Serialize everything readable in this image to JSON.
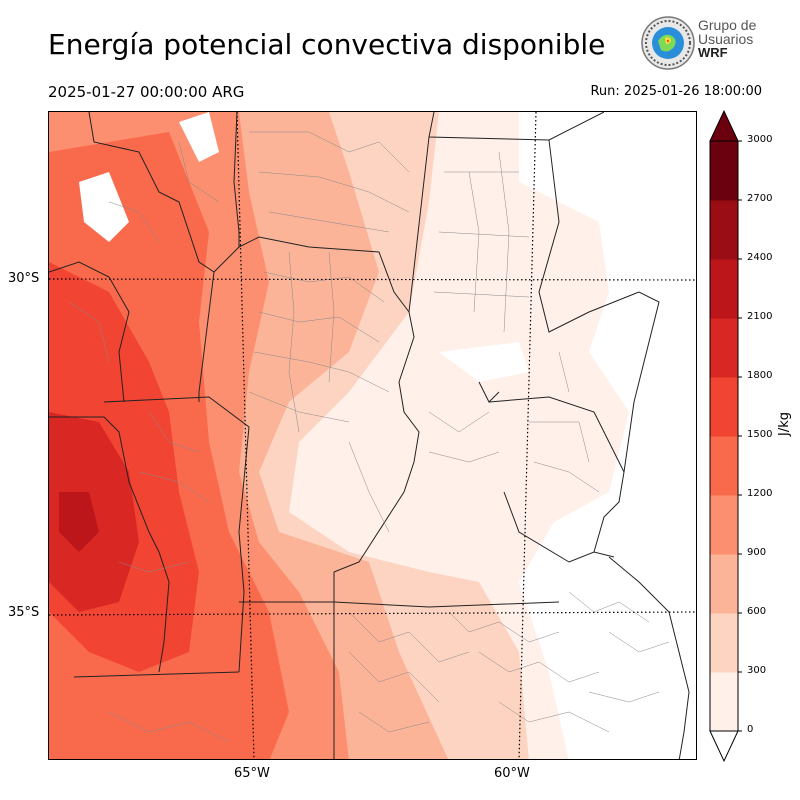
{
  "title": "Energía potencial convectiva disponible",
  "valid_time": "2025-01-27 00:00:00 ARG",
  "run_time": "Run: 2025-01-26 18:00:00",
  "logo": {
    "line1": "Grupo de",
    "line2": "Usuarios",
    "line3": "WRF"
  },
  "map": {
    "latitude_labels": [
      "30°S",
      "35°S"
    ],
    "longitude_labels": [
      "65°W",
      "60°W"
    ],
    "variable": "CAPE",
    "gridlines": "dotted"
  },
  "colorbar": {
    "unit": "J/kg",
    "ticks": [
      "0",
      "300",
      "600",
      "900",
      "1200",
      "1500",
      "1800",
      "2100",
      "2400",
      "2700",
      "3000"
    ],
    "levels": [
      0,
      300,
      600,
      900,
      1200,
      1500,
      1800,
      2100,
      2400,
      2700,
      3000
    ],
    "colors": [
      "#fff0ea",
      "#fdd4c2",
      "#fcb499",
      "#fc8f6f",
      "#f96a4c",
      "#f14432",
      "#d92723",
      "#bc151a",
      "#9b0d14",
      "#6b010e"
    ],
    "extend": "both"
  }
}
